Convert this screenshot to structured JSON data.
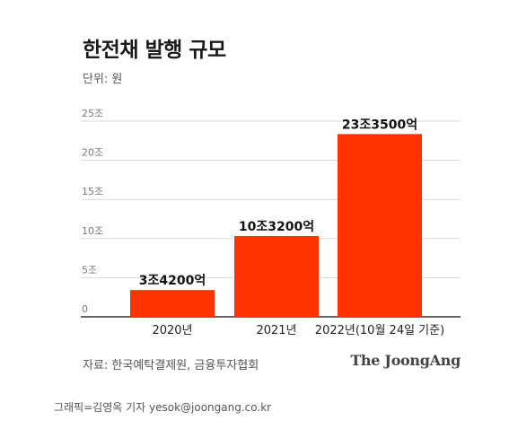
{
  "title": "한전채 발행 규모",
  "unit": "단위: 원",
  "source": "자료: 한국예탁결제원, 금융투자협회",
  "brand": "The JoongAng",
  "credit": "그래픽=김영옥 기자 yesok@joongang.co.kr",
  "colors": {
    "bar": "#ff3300",
    "grid": "#d9d9d9",
    "axis": "#333333"
  },
  "chart_data": {
    "type": "bar",
    "categories": [
      "2020년",
      "2021년",
      "2022년(10월 24일 기준)"
    ],
    "values": [
      3.42,
      10.32,
      23.35
    ],
    "data_labels": [
      "3조4200억",
      "10조3200억",
      "23조3500억"
    ],
    "yticks": [
      0,
      5,
      10,
      15,
      20,
      25
    ],
    "ytick_labels": [
      "0",
      "5조",
      "10조",
      "15조",
      "20조",
      "25조"
    ],
    "ylim": [
      0,
      25
    ],
    "grid": true
  }
}
